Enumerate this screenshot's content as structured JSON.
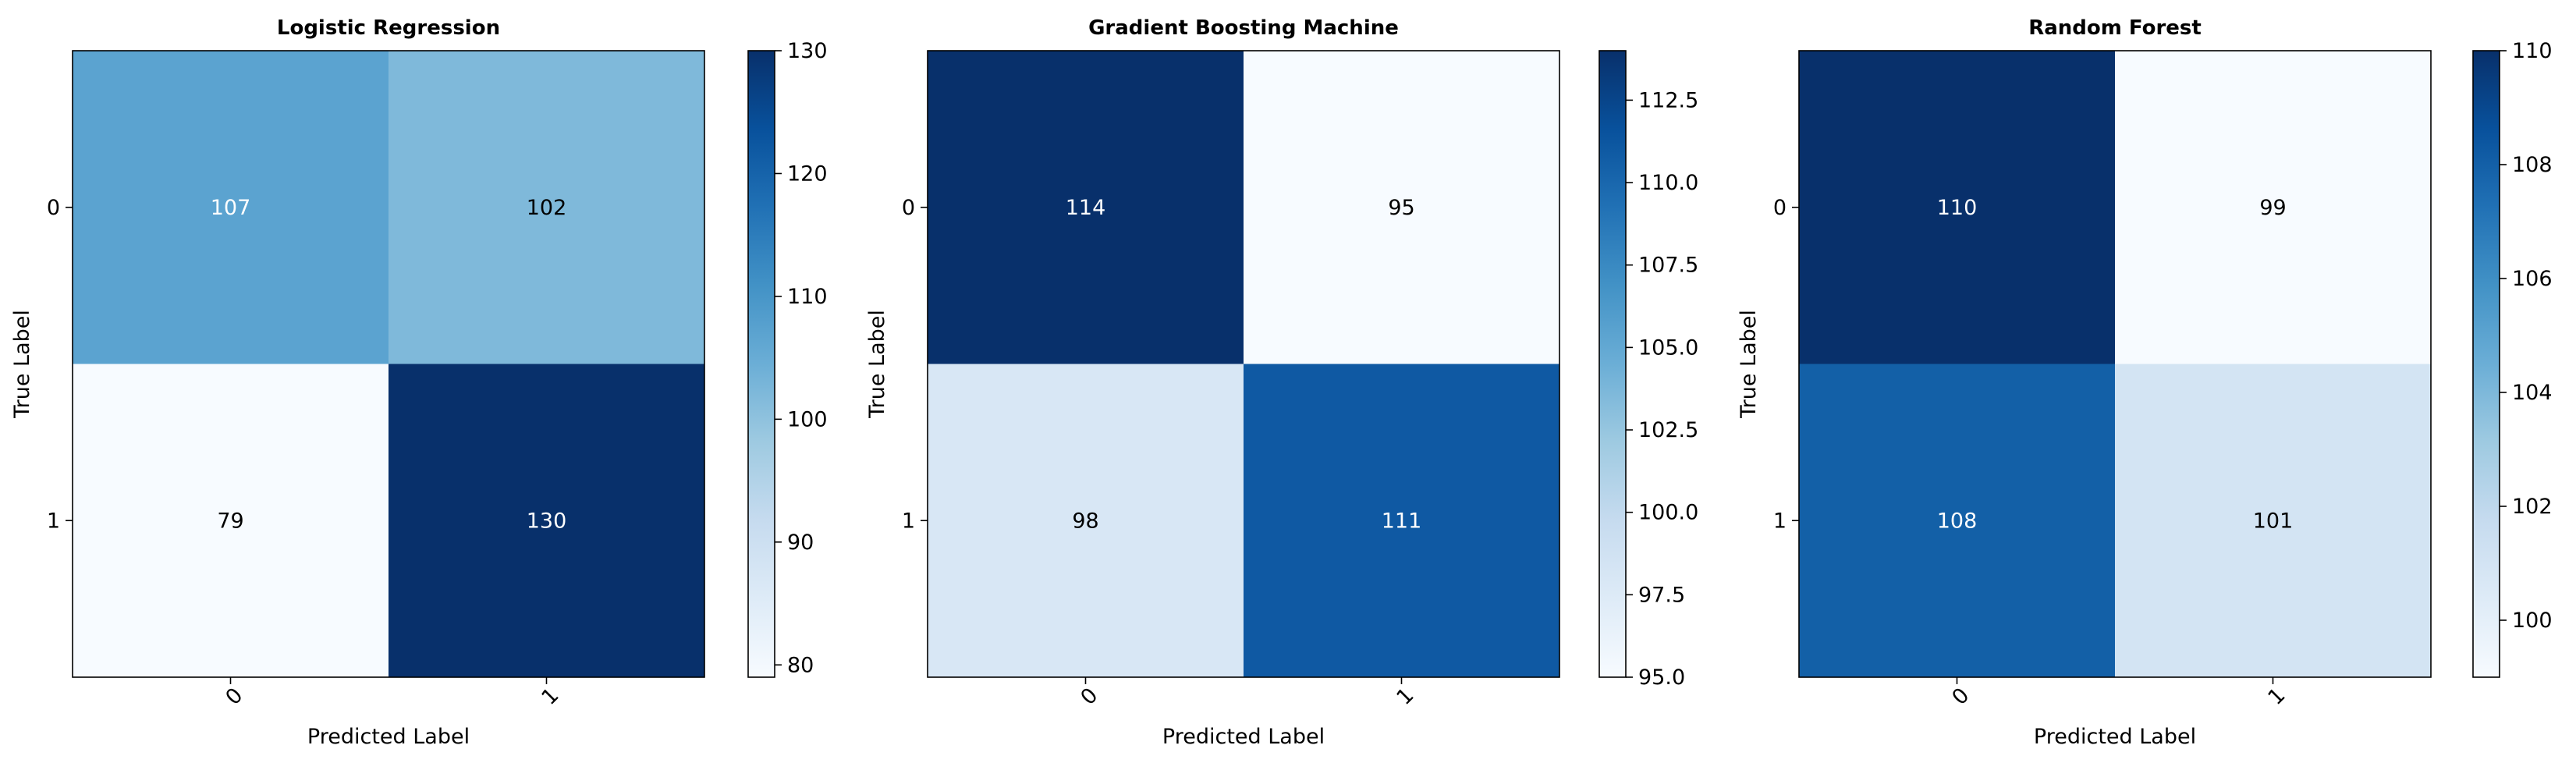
{
  "chart_data": [
    {
      "type": "heatmap",
      "title": "Logistic Regression",
      "xlabel": "Predicted Label",
      "ylabel": "True Label",
      "x_ticks": [
        "0",
        "1"
      ],
      "y_ticks": [
        "0",
        "1"
      ],
      "matrix": [
        [
          107,
          102
        ],
        [
          79,
          130
        ]
      ],
      "color_range": [
        79,
        130
      ],
      "colorbar_ticks": [
        "80",
        "90",
        "100",
        "110",
        "120",
        "130"
      ],
      "colormap": "Blues"
    },
    {
      "type": "heatmap",
      "title": "Gradient Boosting Machine",
      "xlabel": "Predicted Label",
      "ylabel": "True Label",
      "x_ticks": [
        "0",
        "1"
      ],
      "y_ticks": [
        "0",
        "1"
      ],
      "matrix": [
        [
          114,
          95
        ],
        [
          98,
          111
        ]
      ],
      "color_range": [
        95,
        114
      ],
      "colorbar_ticks": [
        "95.0",
        "97.5",
        "100.0",
        "102.5",
        "105.0",
        "107.5",
        "110.0",
        "112.5"
      ],
      "colormap": "Blues"
    },
    {
      "type": "heatmap",
      "title": "Random Forest",
      "xlabel": "Predicted Label",
      "ylabel": "True Label",
      "x_ticks": [
        "0",
        "1"
      ],
      "y_ticks": [
        "0",
        "1"
      ],
      "matrix": [
        [
          110,
          99
        ],
        [
          108,
          101
        ]
      ],
      "color_range": [
        99,
        110
      ],
      "colorbar_ticks": [
        "100",
        "102",
        "104",
        "106",
        "108",
        "110"
      ],
      "colormap": "Blues"
    }
  ]
}
